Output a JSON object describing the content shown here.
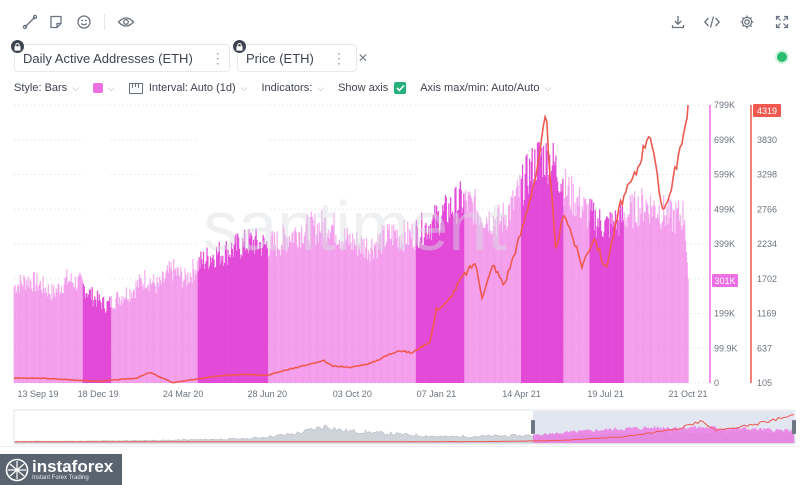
{
  "toolbar": {
    "left_icons": [
      "line-icon",
      "note-icon",
      "smiley-icon",
      "eye-icon"
    ],
    "right_icons": [
      "download-icon",
      "code-icon",
      "gear-icon",
      "expand-icon"
    ]
  },
  "metrics": [
    {
      "label": "Daily Active Addresses (ETH)",
      "color": "#ee6fe3"
    },
    {
      "label": "Price (ETH)",
      "color": "#f0594f"
    }
  ],
  "settings": {
    "style_label": "Style: Bars",
    "interval_label": "Interval: Auto (1d)",
    "indicators_label": "Indicators:",
    "show_axis_label": "Show axis",
    "axis_maxmin_label": "Axis max/min: Auto/Auto"
  },
  "watermark": "santiment",
  "colors": {
    "bars": "#ee6fe3",
    "bars_highlight": "#e244d6",
    "price": "#f0594f",
    "status": "#2bbd6e"
  },
  "chart_data": {
    "type": "bar",
    "x_ticks": [
      "13 Sep 19",
      "18 Dec 19",
      "24 Mar 20",
      "28 Jun 20",
      "03 Oct 20",
      "07 Jan 21",
      "14 Apr 21",
      "19 Jul 21",
      "21 Oct 21"
    ],
    "address_axis_ticks": [
      "799K",
      "699K",
      "599K",
      "499K",
      "399K",
      "299K",
      "199K",
      "99.9K",
      "0"
    ],
    "price_axis_ticks": [
      "4319",
      "3830",
      "3298",
      "2766",
      "2234",
      "1702",
      "1169",
      "637",
      "105"
    ],
    "address_axis_range": [
      0,
      799000
    ],
    "price_axis_range": [
      105,
      4319
    ],
    "current_address_value": "301K",
    "current_price_value": "4319",
    "series": [
      {
        "name": "Daily Active Addresses (ETH)",
        "kind": "bar",
        "points": [
          [
            "13 Sep 19",
            280000
          ],
          [
            "28 Sep 19",
            300000
          ],
          [
            "13 Oct 19",
            285000
          ],
          [
            "28 Oct 19",
            260000
          ],
          [
            "12 Nov 19",
            300000
          ],
          [
            "27 Nov 19",
            290000
          ],
          [
            "12 Dec 19",
            250000
          ],
          [
            "27 Dec 19",
            225000
          ],
          [
            "11 Jan 20",
            250000
          ],
          [
            "26 Jan 20",
            270000
          ],
          [
            "10 Feb 20",
            305000
          ],
          [
            "25 Feb 20",
            280000
          ],
          [
            "11 Mar 20",
            330000
          ],
          [
            "26 Mar 20",
            300000
          ],
          [
            "10 Apr 20",
            345000
          ],
          [
            "25 Apr 20",
            370000
          ],
          [
            "10 May 20",
            380000
          ],
          [
            "25 May 20",
            395000
          ],
          [
            "9 Jun 20",
            410000
          ],
          [
            "24 Jun 20",
            400000
          ],
          [
            "9 Jul 20",
            405000
          ],
          [
            "24 Jul 20",
            430000
          ],
          [
            "8 Aug 20",
            445000
          ],
          [
            "23 Aug 20",
            450000
          ],
          [
            "7 Sep 20",
            465000
          ],
          [
            "22 Sep 20",
            420000
          ],
          [
            "7 Oct 20",
            405000
          ],
          [
            "22 Oct 20",
            395000
          ],
          [
            "6 Nov 20",
            415000
          ],
          [
            "21 Nov 20",
            435000
          ],
          [
            "6 Dec 20",
            425000
          ],
          [
            "21 Dec 20",
            445000
          ],
          [
            "5 Jan 21",
            470000
          ],
          [
            "20 Jan 21",
            500000
          ],
          [
            "4 Feb 21",
            530000
          ],
          [
            "19 Feb 21",
            510000
          ],
          [
            "6 Mar 21",
            480000
          ],
          [
            "21 Mar 21",
            470000
          ],
          [
            "5 Apr 21",
            520000
          ],
          [
            "20 Apr 21",
            600000
          ],
          [
            "5 May 21",
            660000
          ],
          [
            "20 May 21",
            640000
          ],
          [
            "4 Jun 21",
            560000
          ],
          [
            "19 Jun 21",
            520000
          ],
          [
            "4 Jul 21",
            480000
          ],
          [
            "19 Jul 21",
            455000
          ],
          [
            "3 Aug 21",
            470000
          ],
          [
            "18 Aug 21",
            500000
          ],
          [
            "2 Sep 21",
            520000
          ],
          [
            "17 Sep 21",
            505000
          ],
          [
            "2 Oct 21",
            480000
          ],
          [
            "17 Oct 21",
            490000
          ],
          [
            "21 Oct 21",
            301000
          ]
        ]
      },
      {
        "name": "Price (ETH)",
        "kind": "line",
        "points": [
          [
            "13 Sep 19",
            180
          ],
          [
            "18 Oct 19",
            175
          ],
          [
            "22 Nov 19",
            150
          ],
          [
            "18 Dec 19",
            130
          ],
          [
            "31 Jan 20",
            180
          ],
          [
            "15 Feb 20",
            265
          ],
          [
            "12 Mar 20",
            110
          ],
          [
            "24 Mar 20",
            135
          ],
          [
            "30 Apr 20",
            205
          ],
          [
            "31 May 20",
            240
          ],
          [
            "28 Jun 20",
            225
          ],
          [
            "25 Jul 20",
            320
          ],
          [
            "1 Sep 20",
            440
          ],
          [
            "10 Sep 20",
            360
          ],
          [
            "3 Oct 20",
            345
          ],
          [
            "25 Oct 20",
            410
          ],
          [
            "24 Nov 20",
            600
          ],
          [
            "10 Dec 20",
            560
          ],
          [
            "31 Dec 20",
            740
          ],
          [
            "7 Jan 21",
            1220
          ],
          [
            "20 Jan 21",
            1330
          ],
          [
            "5 Feb 21",
            1700
          ],
          [
            "20 Feb 21",
            1930
          ],
          [
            "28 Feb 21",
            1420
          ],
          [
            "13 Mar 21",
            1900
          ],
          [
            "25 Mar 21",
            1580
          ],
          [
            "14 Apr 21",
            2400
          ],
          [
            "3 May 21",
            3400
          ],
          [
            "12 May 21",
            4170
          ],
          [
            "23 May 21",
            2100
          ],
          [
            "2 Jun 21",
            2700
          ],
          [
            "22 Jun 21",
            1880
          ],
          [
            "6 Jul 21",
            2320
          ],
          [
            "19 Jul 21",
            1820
          ],
          [
            "5 Aug 21",
            2820
          ],
          [
            "23 Aug 21",
            3300
          ],
          [
            "7 Sep 21",
            3950
          ],
          [
            "21 Sep 21",
            2780
          ],
          [
            "28 Sep 21",
            2850
          ],
          [
            "10 Oct 21",
            3550
          ],
          [
            "16 Oct 21",
            3800
          ],
          [
            "21 Oct 21",
            4319
          ]
        ]
      }
    ],
    "highlight_bands": [
      [
        "18 Dec 19",
        "18 Dec 19"
      ],
      [
        "24 Mar 20",
        "28 Jun 20"
      ],
      [
        "07 Jan 21",
        "07 Jan 21"
      ],
      [
        "14 Apr 21",
        "14 Apr 21"
      ],
      [
        "19 Jul 21",
        "19 Jul 21"
      ]
    ],
    "grid": true,
    "navigator": true
  }
}
